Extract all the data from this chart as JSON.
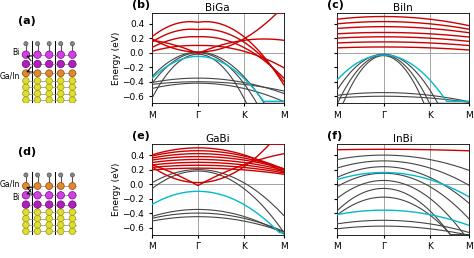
{
  "panels": {
    "b_title": "BiGa",
    "c_title": "BiIn",
    "e_title": "GaBi",
    "f_title": "InBi"
  },
  "xlabel_ticks": [
    "M",
    "Γ",
    "K",
    "M"
  ],
  "ylabel": "Energy (eV)",
  "ylim": [
    -0.7,
    0.55
  ],
  "yticks": [
    -0.6,
    -0.4,
    -0.2,
    0,
    0.2,
    0.4
  ],
  "kG": 0.35,
  "kK": 0.7,
  "colors": {
    "red": "#cc0000",
    "cyan": "#00bbcc",
    "dark": "#444444",
    "darkgray": "#666666"
  },
  "label_a": "(a)",
  "label_b": "(b)",
  "label_c": "(c)",
  "label_d": "(d)",
  "label_e": "(e)",
  "label_f": "(f)",
  "label_bi": "Bi",
  "label_gain": "Ga/In",
  "bi_color": "#cc44dd",
  "bi_dark_color": "#aa22bb",
  "ga_color": "#dd8833",
  "si_color": "#dddd33"
}
